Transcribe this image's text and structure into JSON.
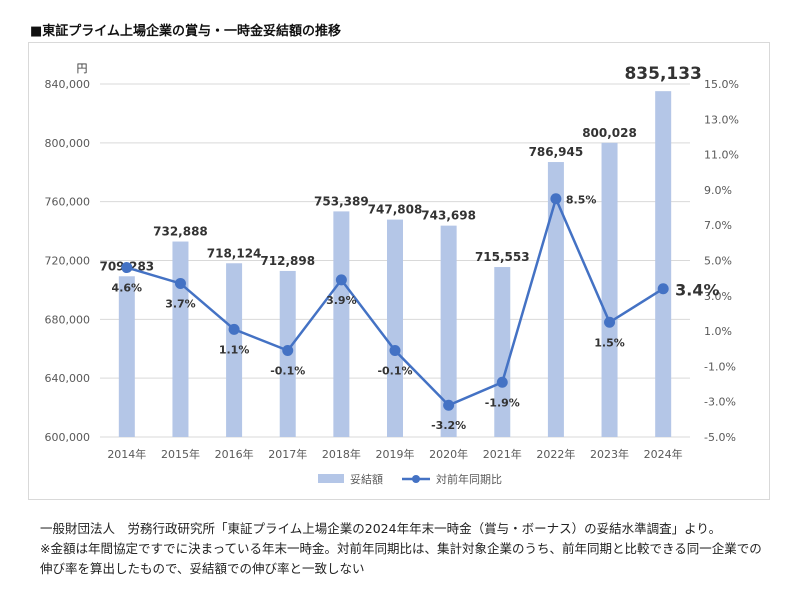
{
  "title": "■東証プライム上場企業の賞与・一時金妥結額の推移",
  "source_lines": [
    "一般財団法人　労務行政研究所「東証プライム上場企業の2024年年末一時金（賞与・ボーナス）の妥結水準調査」より。",
    "※金額は年間協定ですでに決まっている年末一時金。対前年同期比は、集計対象企業のうち、前年同期と比較できる同一企業での",
    "伸び率を算出したもので、妥結額での伸び率と一致しない"
  ],
  "chart_data": {
    "type": "bar+line",
    "categories": [
      "2014年",
      "2015年",
      "2016年",
      "2017年",
      "2018年",
      "2019年",
      "2020年",
      "2021年",
      "2022年",
      "2023年",
      "2024年"
    ],
    "series": [
      {
        "name": "妥結額",
        "type": "bar",
        "axis": "left",
        "color": "#b4c6e7",
        "values": [
          709283,
          732888,
          718124,
          712898,
          753389,
          747808,
          743698,
          715553,
          786945,
          800028,
          835133
        ],
        "labels": [
          "709,283",
          "732,888",
          "718,124",
          "712,898",
          "753,389",
          "747,808",
          "743,698",
          "715,553",
          "786,945",
          "800,028",
          "835,133"
        ]
      },
      {
        "name": "対前年同期比",
        "type": "line",
        "axis": "right",
        "color": "#4472c4",
        "values": [
          4.6,
          3.7,
          1.1,
          -0.1,
          3.9,
          -0.1,
          -3.2,
          -1.9,
          8.5,
          1.5,
          3.4
        ],
        "labels": [
          "4.6%",
          "3.7%",
          "1.1%",
          "-0.1%",
          "3.9%",
          "-0.1%",
          "-3.2%",
          "-1.9%",
          "8.5%",
          "1.5%",
          "3.4%"
        ]
      }
    ],
    "left_axis": {
      "unit": "円",
      "min": 600000,
      "max": 840000,
      "ticks": [
        600000,
        640000,
        680000,
        720000,
        760000,
        800000,
        840000
      ],
      "tick_labels": [
        "600,000",
        "640,000",
        "680,000",
        "720,000",
        "760,000",
        "800,000",
        "840,000"
      ]
    },
    "right_axis": {
      "min": -5.0,
      "max": 15.0,
      "ticks": [
        -5,
        -3,
        -1,
        1,
        3,
        5,
        7,
        9,
        11,
        13,
        15
      ],
      "tick_labels": [
        "-5.0%",
        "-3.0%",
        "-1.0%",
        "1.0%",
        "3.0%",
        "5.0%",
        "7.0%",
        "9.0%",
        "11.0%",
        "13.0%",
        "15.0%"
      ]
    },
    "grid": true,
    "legend": "bottom-center"
  }
}
